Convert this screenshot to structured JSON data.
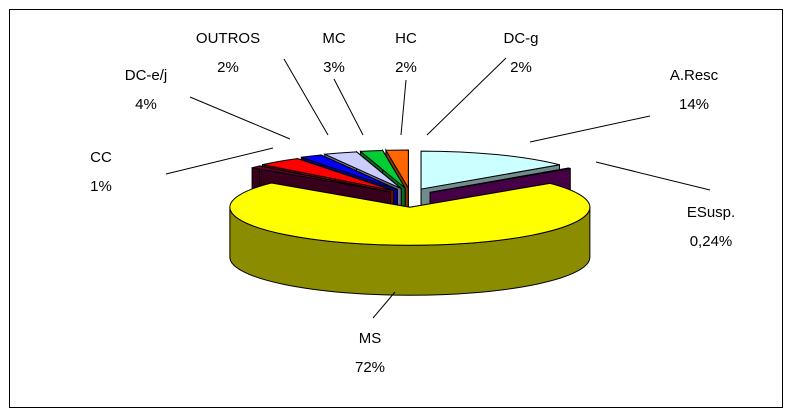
{
  "chart_data": {
    "type": "pie",
    "style": "3d-exploded",
    "slices": [
      {
        "label": "A.Resc",
        "value_label": "14%",
        "value": 14,
        "color": "#ccffff"
      },
      {
        "label": "ESusp.",
        "value_label": "0,24%",
        "value": 0.24,
        "color": "#800080"
      },
      {
        "label": "MS",
        "value_label": "72%",
        "value": 72,
        "color": "#ffff00"
      },
      {
        "label": "CC",
        "value_label": "1%",
        "value": 1,
        "color": "#660033"
      },
      {
        "label": "DC-e/j",
        "value_label": "4%",
        "value": 4,
        "color": "#ff0000"
      },
      {
        "label": "OUTROS",
        "value_label": "2%",
        "value": 2,
        "color": "#0000ff"
      },
      {
        "label": "MC",
        "value_label": "3%",
        "value": 3,
        "color": "#ccccff"
      },
      {
        "label": "HC",
        "value_label": "2%",
        "value": 2,
        "color": "#00cc33"
      },
      {
        "label": "DC-g",
        "value_label": "2%",
        "value": 2,
        "color": "#ff6600"
      }
    ]
  }
}
